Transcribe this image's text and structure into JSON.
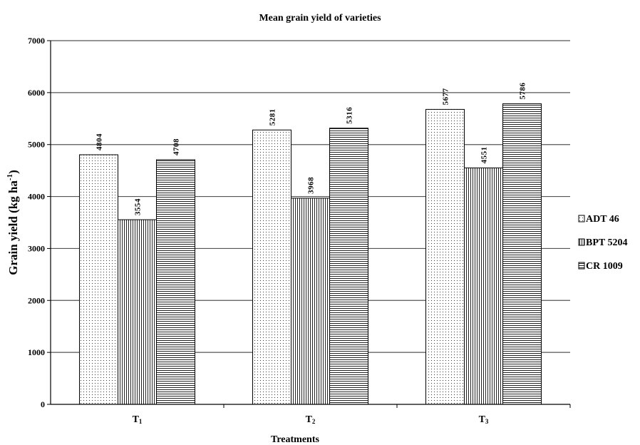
{
  "chart_data": {
    "type": "bar",
    "title": "Mean grain  yield of varieties",
    "xlabel": "Treatments",
    "ylabel_main": "Grain yield (kg ha",
    "ylabel_sup": "-1",
    "ylabel_close": ")",
    "categories": [
      {
        "base": "T",
        "sub": "1"
      },
      {
        "base": "T",
        "sub": "2"
      },
      {
        "base": "T",
        "sub": "3"
      }
    ],
    "series": [
      {
        "name": "ADT 46",
        "values": [
          4804,
          5281,
          5677
        ],
        "pattern": "dots"
      },
      {
        "name": "BPT 5204",
        "values": [
          3554,
          3968,
          4551
        ],
        "pattern": "vertical"
      },
      {
        "name": "CR 1009",
        "values": [
          4708,
          5316,
          5786
        ],
        "pattern": "horizontal"
      }
    ],
    "ylim": [
      0,
      7000
    ],
    "yticks": [
      0,
      1000,
      2000,
      3000,
      4000,
      5000,
      6000,
      7000
    ],
    "grid": true,
    "legend_position": "right"
  }
}
